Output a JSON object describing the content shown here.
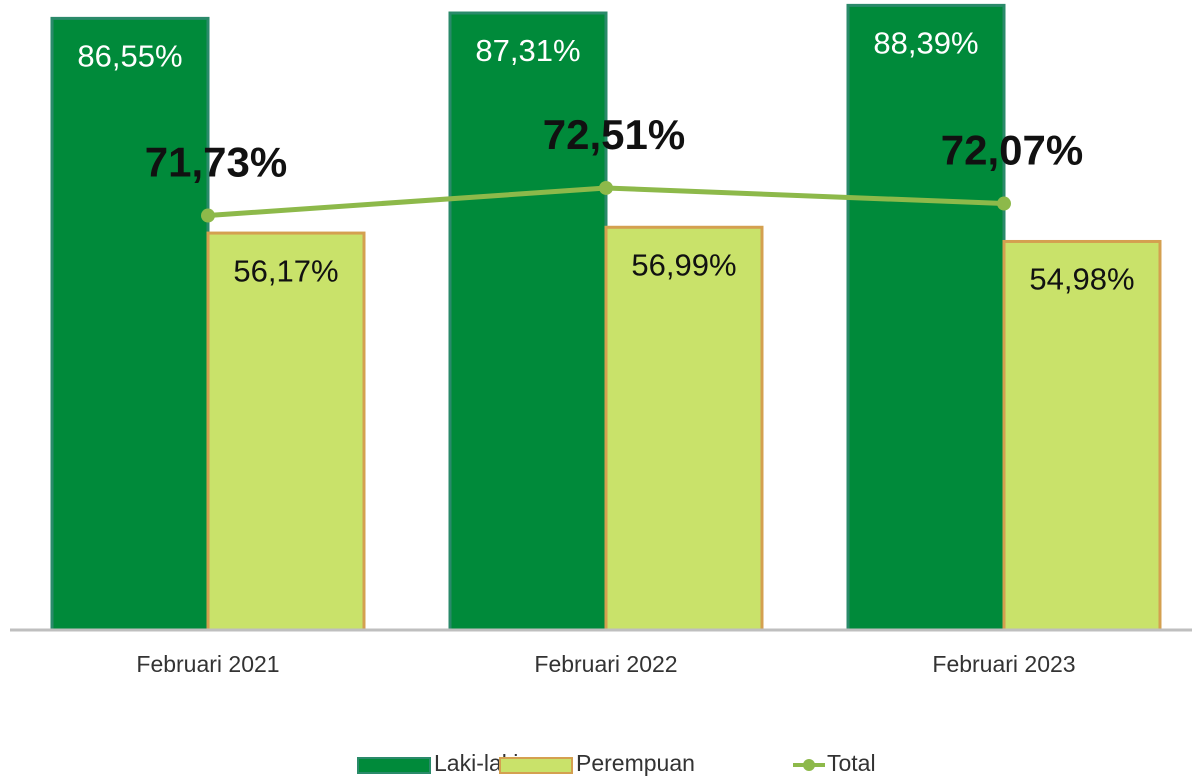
{
  "chart_data": {
    "type": "bar",
    "categories": [
      "Februari 2021",
      "Februari 2022",
      "Februari 2023"
    ],
    "series": [
      {
        "name": "Laki-laki",
        "color": "#008a3a",
        "values": [
          86.55,
          87.31,
          88.39
        ],
        "value_labels": [
          "86,55%",
          "87,31%",
          "88,39%"
        ]
      },
      {
        "name": "Perempuan",
        "color": "#c9e26a",
        "values": [
          56.17,
          56.99,
          54.98
        ],
        "value_labels": [
          "56,17%",
          "56,99%",
          "54,98%"
        ]
      },
      {
        "name": "Total",
        "type": "line",
        "axis": "y2",
        "color": "#8db94a",
        "values": [
          71.73,
          72.51,
          72.07
        ],
        "value_labels": [
          "71,73%",
          "72,51%",
          "72,07%"
        ]
      }
    ],
    "ylim": [
      0,
      90
    ],
    "y2lim": [
      60,
      78
    ],
    "legend": "bottom"
  }
}
